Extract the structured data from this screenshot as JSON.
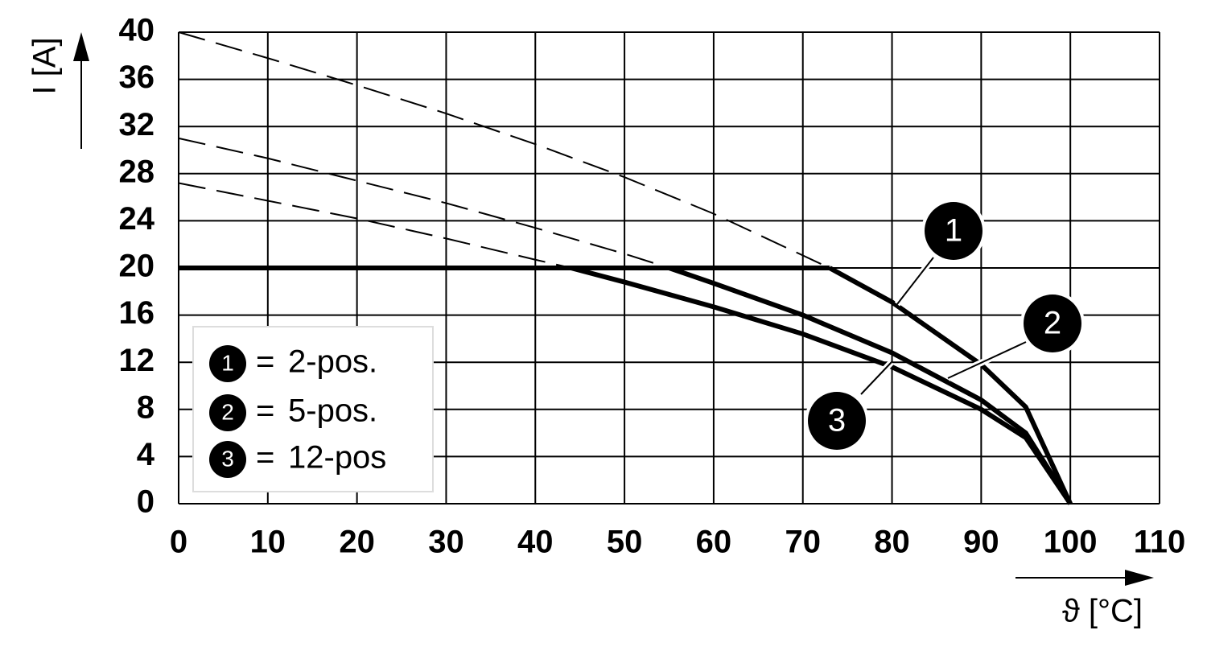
{
  "chart_data": {
    "type": "line",
    "x_label": "ϑ [°C]",
    "y_label": "I [A]",
    "xlim": [
      0,
      110
    ],
    "xticks": [
      0,
      10,
      20,
      30,
      40,
      50,
      60,
      70,
      80,
      90,
      100,
      110
    ],
    "ylim": [
      0,
      40
    ],
    "yticks": [
      0,
      4,
      8,
      12,
      16,
      20,
      24,
      28,
      32,
      36,
      40
    ],
    "grid": true,
    "legend_position": "lower left",
    "legend_separator": "=",
    "series": [
      {
        "color": "#000000",
        "x": [
          0,
          73
        ],
        "values": [
          20,
          20
        ]
      },
      {
        "badge": "1",
        "name": "2-pos.",
        "color": "#000000",
        "x": [
          0,
          10,
          20,
          30,
          40,
          50,
          60,
          73,
          80,
          90,
          95,
          100
        ],
        "values": [
          40,
          37.8,
          35.5,
          33.1,
          30.5,
          27.7,
          24.6,
          20,
          17.1,
          11.8,
          8.2,
          0
        ]
      },
      {
        "badge": "2",
        "name": "5-pos.",
        "color": "#000000",
        "x": [
          0,
          10,
          20,
          30,
          40,
          50,
          55,
          60,
          70,
          80,
          90,
          95,
          100
        ],
        "values": [
          31,
          29.3,
          27.4,
          25.5,
          23.4,
          21.2,
          20,
          18.7,
          16.0,
          12.8,
          8.8,
          6.0,
          0
        ]
      },
      {
        "badge": "3",
        "name": "12-pos",
        "color": "#000000",
        "x": [
          0,
          10,
          20,
          30,
          40,
          44,
          50,
          60,
          70,
          80,
          90,
          95,
          100
        ],
        "values": [
          27.2,
          25.7,
          24.2,
          22.5,
          20.7,
          20,
          18.8,
          16.7,
          14.4,
          11.6,
          8.0,
          5.6,
          0
        ]
      }
    ]
  }
}
